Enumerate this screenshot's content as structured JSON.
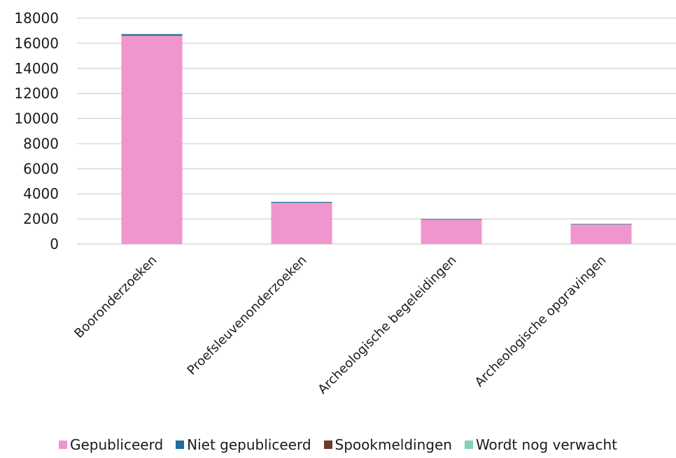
{
  "chart_data": {
    "type": "bar",
    "stacked": true,
    "categories": [
      "Booronderzoeken",
      "Proefsleuvenonderzoeken",
      "Archeologische begeleidingen",
      "Archeologische opgravingen"
    ],
    "series": [
      {
        "name": "Gepubliceerd",
        "color": "#f095cd",
        "values": [
          16600,
          3280,
          1940,
          1560
        ]
      },
      {
        "name": "Niet gepubliceerd",
        "color": "#1f6e9a",
        "values": [
          120,
          70,
          50,
          40
        ]
      },
      {
        "name": "Spookmeldingen",
        "color": "#6b3a2a",
        "values": [
          5,
          5,
          5,
          5
        ]
      },
      {
        "name": "Wordt nog verwacht",
        "color": "#7fd3b4",
        "values": [
          20,
          10,
          10,
          10
        ]
      }
    ],
    "y_ticks": [
      "0",
      "2000",
      "4000",
      "6000",
      "8000",
      "10000",
      "12000",
      "14000",
      "16000",
      "18000"
    ],
    "ylim": [
      0,
      18000
    ],
    "grid": true,
    "legend_position": "bottom"
  }
}
